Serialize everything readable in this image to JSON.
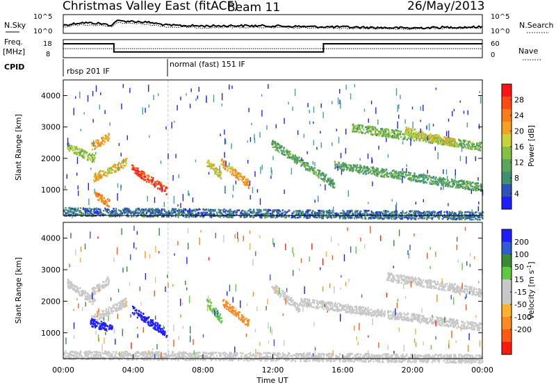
{
  "title": {
    "station": "Christmas Valley East (fitACF)",
    "beam": "Beam 11",
    "date": "26/May/2013"
  },
  "header_panels": {
    "nsky_label": "N.Sky",
    "nsky_ticks": [
      "10^5",
      "10^0"
    ],
    "nsearch_label": "N.Search",
    "nsearch_ticks": [
      "10^5",
      "10^0"
    ],
    "freq_label_line1": "Freq.",
    "freq_label_line2": "[MHz]",
    "freq_ticks": [
      "18",
      "8"
    ],
    "nave_label": "Nave",
    "nave_ticks": [
      "60",
      "0"
    ],
    "cpid_label": "CPID",
    "cpid_modes": [
      "rbsp 201 IF",
      "normal (fast) 151 IF"
    ]
  },
  "x_axis": {
    "label": "Time UT",
    "ticks": [
      "00:00",
      "04:00",
      "08:00",
      "12:00",
      "16:00",
      "20:00",
      "00:00"
    ]
  },
  "colors": {
    "power_scale": [
      "#1e1eff",
      "#2f53b8",
      "#3f8f73",
      "#5aa55a",
      "#86c043",
      "#c8d23a",
      "#f5a020",
      "#ff7a1a",
      "#ff4a14",
      "#ff1414"
    ],
    "velocity_scale": [
      "#1e1eff",
      "#2e5cd4",
      "#3a8a3a",
      "#5fc940",
      "#c8c8c8",
      "#c8c8c8",
      "#ffb030",
      "#ff8a20",
      "#ff5a15",
      "#ff1a10"
    ],
    "noise_dots": "#aab4ff"
  },
  "chart_data": [
    {
      "type": "line",
      "panel": "N.Sky / N.Search",
      "ylabel": "N.Sky",
      "y2label": "N.Search",
      "ylim": [
        0,
        5
      ],
      "yscale": "log",
      "x": [
        0,
        1,
        2,
        2.8,
        3.0,
        4,
        5,
        6,
        8,
        10,
        12,
        14,
        16,
        18,
        20,
        22,
        24
      ],
      "series": [
        {
          "name": "N.Sky",
          "values": [
            2.0,
            2.8,
            2.6,
            2.0,
            3.3,
            3.2,
            2.8,
            2.0,
            1.8,
            1.9,
            1.8,
            1.6,
            1.5,
            1.3,
            1.2,
            1.4,
            1.5
          ]
        },
        {
          "name": "N.Search",
          "values": [
            1.5,
            2.2,
            2.0,
            1.5,
            2.7,
            2.6,
            2.2,
            1.5,
            1.3,
            1.4,
            1.3,
            1.2,
            1.1,
            1.0,
            0.9,
            1.1,
            1.2
          ]
        }
      ]
    },
    {
      "type": "line",
      "panel": "Freq / Nave",
      "ylabel": "Freq. [MHz]",
      "y2label": "Nave",
      "ylim": [
        8,
        18
      ],
      "x": [
        0,
        2.9,
        2.9,
        14.9,
        14.9,
        24
      ],
      "series": [
        {
          "name": "Freq.",
          "values": [
            16.2,
            16.2,
            10.8,
            10.8,
            16.2,
            16.2
          ]
        },
        {
          "name": "Nave",
          "values": [
            13.0,
            13.0,
            13.0,
            13.0,
            13.0,
            13.0
          ]
        }
      ]
    },
    {
      "type": "table",
      "panel": "CPID",
      "rows": [
        {
          "start": "00:00",
          "end": "06:00",
          "mode": "rbsp 201 IF"
        },
        {
          "start": "06:00",
          "end": "24:00",
          "mode": "normal (fast) 151 IF"
        }
      ]
    },
    {
      "type": "heatmap",
      "panel": "Power",
      "xlabel": "Time UT",
      "ylabel": "Slant Range [km]",
      "ylim": [
        180,
        4500
      ],
      "yticks": [
        1000,
        2000,
        3000,
        4000
      ],
      "colorbar_label": "Power [dB]",
      "colorbar_ticks": [
        4,
        8,
        12,
        16,
        20,
        24,
        28
      ],
      "colorbar_range": [
        0,
        30
      ],
      "features": [
        {
          "t_start": 0.2,
          "t_end": 1.8,
          "range_start": 2400,
          "range_end": 2000,
          "value": 14
        },
        {
          "t_start": 1.6,
          "t_end": 2.6,
          "range_start": 2400,
          "range_end": 2700,
          "value": 20
        },
        {
          "t_start": 1.7,
          "t_end": 3.6,
          "range_start": 1400,
          "range_end": 1900,
          "value": 18
        },
        {
          "t_start": 3.9,
          "t_end": 5.9,
          "range_start": 1700,
          "range_end": 1000,
          "value": 26
        },
        {
          "t_start": 1.8,
          "t_end": 2.6,
          "range_start": 850,
          "range_end": 600,
          "value": 22
        },
        {
          "t_start": 8.2,
          "t_end": 9.0,
          "range_start": 1900,
          "range_end": 1500,
          "value": 16
        },
        {
          "t_start": 9.0,
          "t_end": 10.6,
          "range_start": 1900,
          "range_end": 1200,
          "value": 20
        },
        {
          "t_start": 11.9,
          "t_end": 15.5,
          "range_start": 2500,
          "range_end": 1200,
          "value": 10
        },
        {
          "t_start": 15.5,
          "t_end": 23.9,
          "range_start": 1800,
          "range_end": 1100,
          "value": 10
        },
        {
          "t_start": 16.5,
          "t_end": 23.9,
          "range_start": 3000,
          "range_end": 2400,
          "value": 12
        },
        {
          "t_start": 19.5,
          "t_end": 22.5,
          "range_start": 2900,
          "range_end": 2500,
          "value": 16
        },
        {
          "t_start": 0.0,
          "t_end": 24.0,
          "range_start": 320,
          "range_end": 200,
          "value": 6
        }
      ]
    },
    {
      "type": "heatmap",
      "panel": "Velocity",
      "xlabel": "Time UT",
      "ylabel": "Slant Range [km]",
      "ylim": [
        180,
        4500
      ],
      "yticks": [
        1000,
        2000,
        3000,
        4000
      ],
      "colorbar_label": "Velocity [m s-1]",
      "colorbar_ticks": [
        200,
        100,
        50,
        15,
        -15,
        -50,
        -100,
        -200
      ],
      "colorbar_range": [
        -250,
        250
      ],
      "features": [
        {
          "t_start": 0.2,
          "t_end": 1.8,
          "range_start": 2600,
          "range_end": 2000,
          "value": 0
        },
        {
          "t_start": 1.6,
          "t_end": 2.6,
          "range_start": 2300,
          "range_end": 2700,
          "value": -40
        },
        {
          "t_start": 1.5,
          "t_end": 3.6,
          "range_start": 1400,
          "range_end": 2000,
          "value": -30
        },
        {
          "t_start": 1.5,
          "t_end": 2.8,
          "range_start": 1350,
          "range_end": 1150,
          "value": 220
        },
        {
          "t_start": 3.9,
          "t_end": 5.9,
          "range_start": 1750,
          "range_end": 1000,
          "value": 230
        },
        {
          "t_start": 8.2,
          "t_end": 9.1,
          "range_start": 2000,
          "range_end": 1400,
          "value": 60
        },
        {
          "t_start": 9.1,
          "t_end": 10.6,
          "range_start": 2000,
          "range_end": 1300,
          "value": -120
        },
        {
          "t_start": 11.9,
          "t_end": 13.5,
          "range_start": 2500,
          "range_end": 1800,
          "value": 40
        },
        {
          "t_start": 13.5,
          "t_end": 23.9,
          "range_start": 2000,
          "range_end": 1200,
          "value": 0
        },
        {
          "t_start": 18.5,
          "t_end": 23.9,
          "range_start": 2800,
          "range_end": 2300,
          "value": 0
        },
        {
          "t_start": 0.0,
          "t_end": 24.0,
          "range_start": 320,
          "range_end": 200,
          "value": -40
        }
      ]
    }
  ]
}
